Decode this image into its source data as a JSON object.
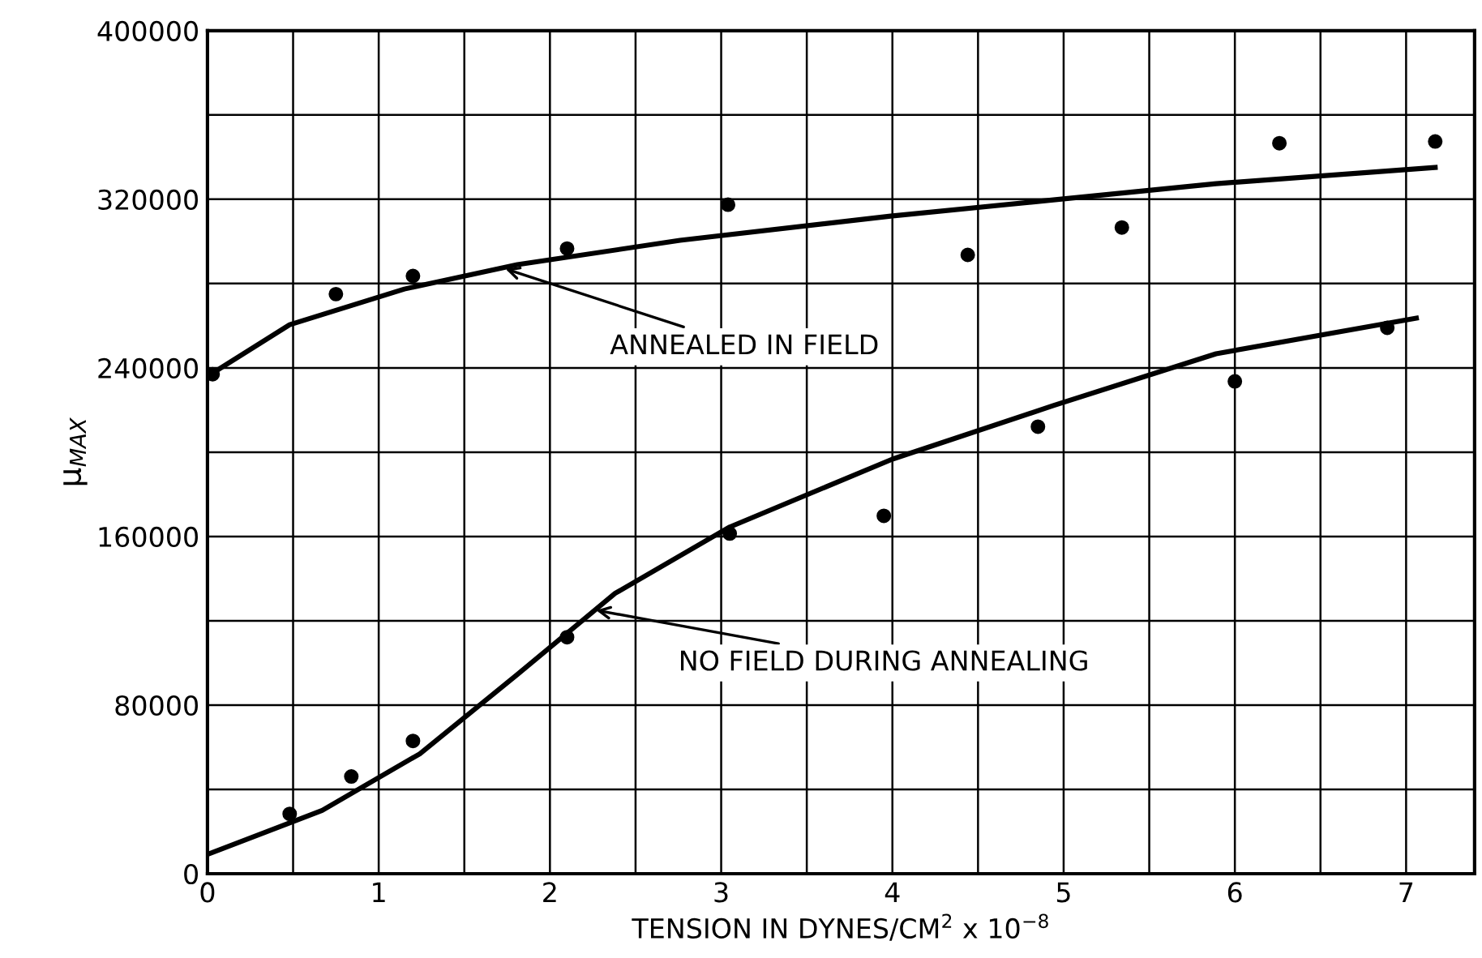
{
  "chart_data": {
    "type": "scatter",
    "xlabel": "TENSION IN DYNES/CM$^{2}$ x 10$^{−8}$",
    "ylabel": "μ$_{MAX}$",
    "xlim": [
      0,
      7.4
    ],
    "ylim": [
      0,
      400000
    ],
    "xticks": [
      0,
      {
        "value": 0.5,
        "label": null
      },
      1,
      {
        "value": 1.5,
        "label": null
      },
      2,
      {
        "value": 2.5,
        "label": null
      },
      3,
      {
        "value": 3.5,
        "label": null
      },
      4,
      {
        "value": 4.5,
        "label": null
      },
      5,
      {
        "value": 5.5,
        "label": null
      },
      6,
      {
        "value": 6.5,
        "label": null
      },
      7
    ],
    "yticks": [
      0,
      {
        "value": 40000,
        "label": null
      },
      80000,
      {
        "value": 120000,
        "label": null
      },
      160000,
      {
        "value": 200000,
        "label": null
      },
      240000,
      {
        "value": 280000,
        "label": null
      },
      320000,
      {
        "value": 360000,
        "label": null
      },
      400000
    ],
    "grid": true,
    "series": [
      {
        "marker": "circle",
        "color": "#000000",
        "x": [
          0.03,
          0.75,
          1.2,
          2.1,
          3.04,
          4.44,
          5.34,
          6.26,
          7.17
        ],
        "values": [
          237000,
          275000,
          283600,
          296600,
          317400,
          293600,
          306600,
          346600,
          347400
        ]
      },
      {
        "marker": "circle",
        "color": "#000000",
        "x": [
          0.48,
          0.84,
          1.2,
          2.1,
          3.05,
          3.95,
          4.85,
          6.0,
          6.89
        ],
        "values": [
          28400,
          46100,
          63000,
          112200,
          161400,
          169800,
          212100,
          233600,
          259000
        ]
      },
      {
        "type": "line",
        "marker": "none",
        "color": "#000000",
        "x": [
          0,
          0.48,
          1.15,
          1.81,
          2.76,
          3.99,
          4.94,
          5.89,
          7.17
        ],
        "values": [
          236000,
          260500,
          277400,
          289000,
          300500,
          312000,
          319700,
          327400,
          335100
        ]
      },
      {
        "type": "line",
        "marker": "none",
        "color": "#000000",
        "x": [
          0,
          0.67,
          1.24,
          1.81,
          2.38,
          3.05,
          4.0,
          4.94,
          5.89,
          7.06
        ],
        "values": [
          9200,
          30000,
          56900,
          94500,
          133000,
          164500,
          196700,
          222100,
          246700,
          263600
        ]
      }
    ],
    "annotations": [
      {
        "text": "ANNEALED IN FIELD",
        "x": 1.74,
        "y": 287000
      },
      {
        "text": "NO FIELD DURING ANNEALING",
        "x": 2.27,
        "y": 125000
      }
    ]
  }
}
